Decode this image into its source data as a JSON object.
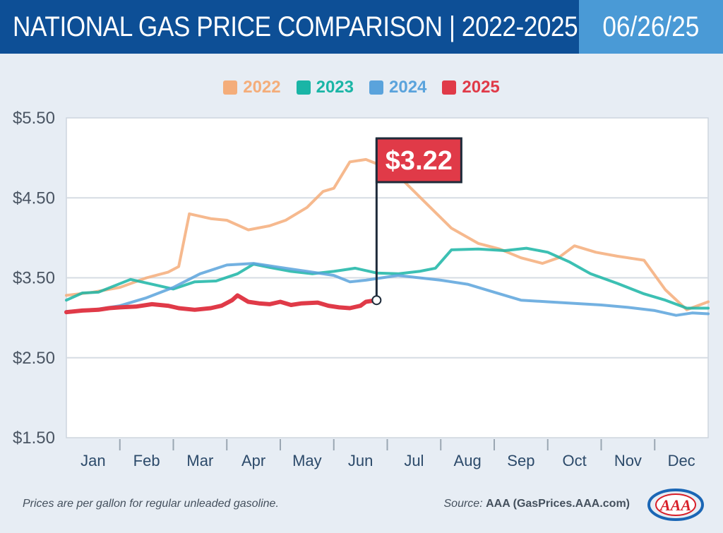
{
  "header": {
    "title": "NATIONAL GAS PRICE COMPARISON | 2022-2025",
    "date": "06/26/25"
  },
  "colors": {
    "header_bg": "#0d4f96",
    "date_bg": "#4a9ad6",
    "s2022": "#f4ad7a",
    "s2023": "#1ab5a6",
    "s2024": "#5aa3dc",
    "s2025": "#e03a48",
    "callout": "#e03a48"
  },
  "legend": [
    {
      "label": "2022",
      "color": "#f4ad7a"
    },
    {
      "label": "2023",
      "color": "#1ab5a6"
    },
    {
      "label": "2024",
      "color": "#5aa3dc"
    },
    {
      "label": "2025",
      "color": "#e03a48"
    }
  ],
  "footer": {
    "note": "Prices are per gallon for regular unleaded gasoline.",
    "source_label": "Source:",
    "source_value": "AAA (GasPrices.AAA.com)",
    "logo_text": "AAA"
  },
  "chart_data": {
    "type": "line",
    "title": "NATIONAL GAS PRICE COMPARISON | 2022-2025",
    "x_unit": "month (0 = Jan 1, 12 = Dec 31)",
    "xlim": [
      0,
      12
    ],
    "ylim": [
      1.5,
      5.5
    ],
    "y_ticks": [
      5.5,
      4.5,
      3.5,
      2.5,
      1.5
    ],
    "y_tick_labels": [
      "$5.50",
      "$4.50",
      "$3.50",
      "$2.50",
      "$1.50"
    ],
    "months": [
      "Jan",
      "Feb",
      "Mar",
      "Apr",
      "May",
      "Jun",
      "Jul",
      "Aug",
      "Sep",
      "Oct",
      "Nov",
      "Dec"
    ],
    "grid": true,
    "callout": {
      "label": "$3.22",
      "x": 5.8,
      "y": 3.22,
      "series": "2025"
    },
    "series": [
      {
        "name": "2022",
        "color": "#f4ad7a",
        "x": [
          0,
          0.5,
          1.0,
          1.5,
          1.9,
          2.1,
          2.3,
          2.7,
          3.0,
          3.4,
          3.8,
          4.1,
          4.5,
          4.8,
          5.0,
          5.3,
          5.6,
          5.9,
          6.2,
          6.7,
          7.2,
          7.7,
          8.1,
          8.5,
          8.9,
          9.2,
          9.5,
          9.9,
          10.3,
          10.8,
          11.2,
          11.6,
          12.0
        ],
        "y": [
          3.28,
          3.32,
          3.38,
          3.5,
          3.57,
          3.64,
          4.3,
          4.24,
          4.22,
          4.1,
          4.15,
          4.22,
          4.38,
          4.58,
          4.62,
          4.95,
          4.98,
          4.9,
          4.78,
          4.45,
          4.12,
          3.93,
          3.86,
          3.75,
          3.68,
          3.75,
          3.9,
          3.82,
          3.77,
          3.72,
          3.35,
          3.1,
          3.2
        ]
      },
      {
        "name": "2023",
        "color": "#1ab5a6",
        "x": [
          0,
          0.3,
          0.6,
          0.9,
          1.2,
          1.6,
          2.0,
          2.4,
          2.8,
          3.2,
          3.5,
          3.8,
          4.2,
          4.6,
          5.0,
          5.4,
          5.8,
          6.2,
          6.6,
          6.9,
          7.2,
          7.7,
          8.2,
          8.6,
          9.0,
          9.4,
          9.8,
          10.3,
          10.8,
          11.2,
          11.6,
          12.0
        ],
        "y": [
          3.22,
          3.31,
          3.32,
          3.4,
          3.48,
          3.42,
          3.36,
          3.45,
          3.46,
          3.55,
          3.67,
          3.63,
          3.58,
          3.55,
          3.58,
          3.62,
          3.56,
          3.55,
          3.58,
          3.62,
          3.85,
          3.86,
          3.84,
          3.87,
          3.82,
          3.7,
          3.55,
          3.43,
          3.3,
          3.22,
          3.12,
          3.12
        ]
      },
      {
        "name": "2024",
        "color": "#5aa3dc",
        "x": [
          0,
          0.5,
          1.0,
          1.5,
          2.0,
          2.5,
          3.0,
          3.5,
          4.0,
          4.5,
          5.0,
          5.3,
          5.6,
          5.8,
          6.2,
          6.6,
          7.0,
          7.5,
          8.0,
          8.5,
          9.0,
          9.5,
          10.0,
          10.5,
          11.0,
          11.4,
          11.7,
          12.0
        ],
        "y": [
          3.08,
          3.1,
          3.15,
          3.25,
          3.38,
          3.55,
          3.66,
          3.68,
          3.63,
          3.58,
          3.53,
          3.45,
          3.47,
          3.49,
          3.53,
          3.5,
          3.47,
          3.42,
          3.32,
          3.22,
          3.2,
          3.18,
          3.16,
          3.13,
          3.09,
          3.03,
          3.06,
          3.05
        ]
      },
      {
        "name": "2025",
        "color": "#e03a48",
        "x": [
          0,
          0.3,
          0.6,
          0.8,
          1.0,
          1.3,
          1.6,
          1.9,
          2.1,
          2.4,
          2.7,
          2.9,
          3.1,
          3.2,
          3.4,
          3.6,
          3.8,
          4.0,
          4.2,
          4.4,
          4.7,
          4.9,
          5.1,
          5.3,
          5.5,
          5.6,
          5.8
        ],
        "y": [
          3.07,
          3.09,
          3.1,
          3.12,
          3.13,
          3.14,
          3.17,
          3.15,
          3.12,
          3.1,
          3.12,
          3.15,
          3.22,
          3.28,
          3.2,
          3.18,
          3.17,
          3.2,
          3.16,
          3.18,
          3.19,
          3.15,
          3.13,
          3.12,
          3.15,
          3.2,
          3.22
        ]
      }
    ]
  }
}
